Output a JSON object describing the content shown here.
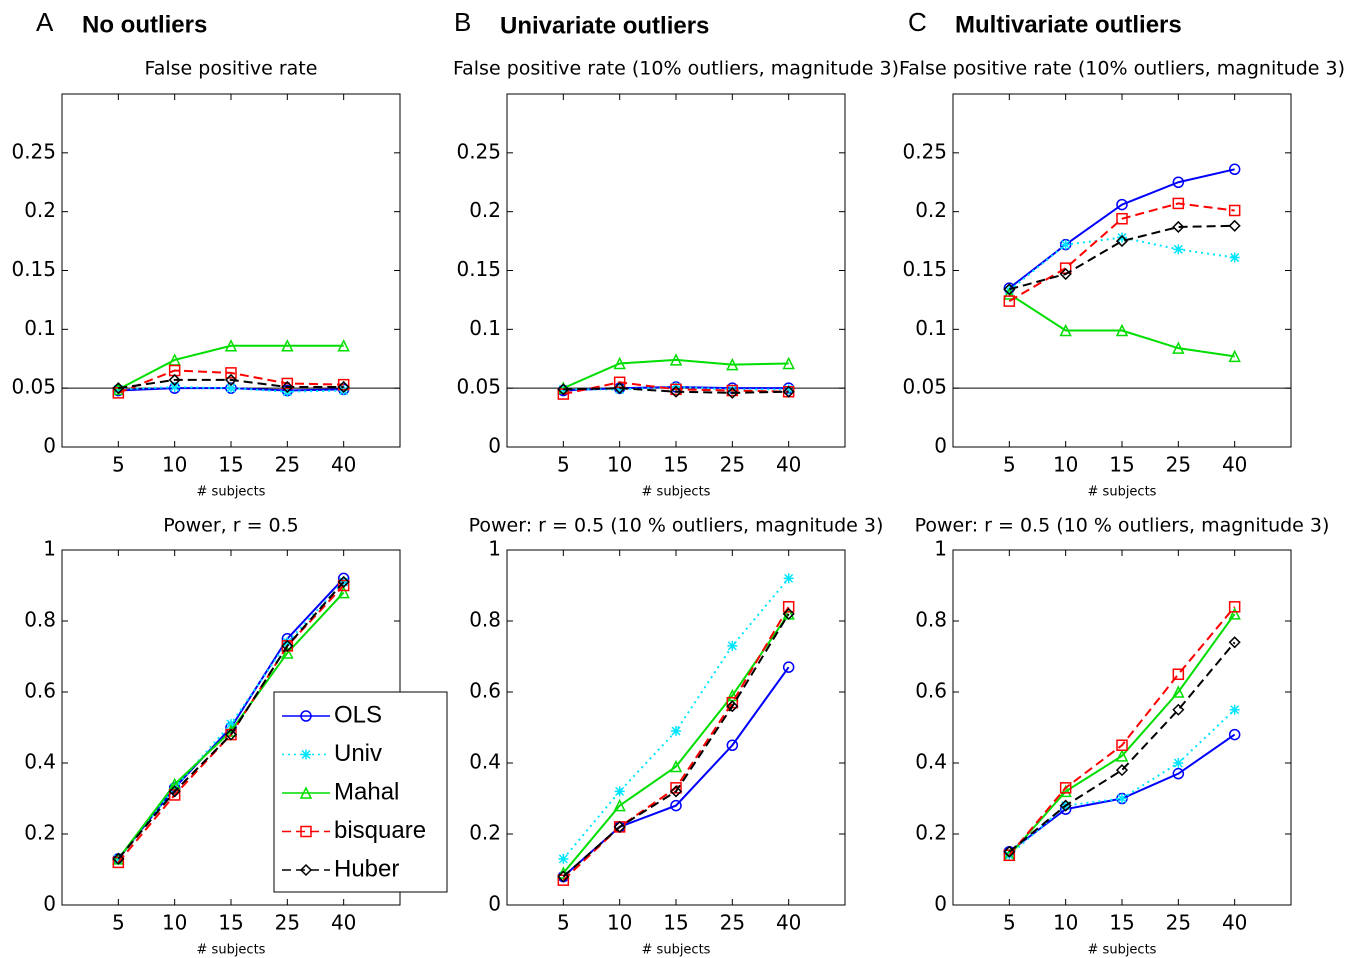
{
  "panels": [
    {
      "letter": "A",
      "title": "No outliers"
    },
    {
      "letter": "B",
      "title": "Univariate outliers"
    },
    {
      "letter": "C",
      "title": "Multivariate outliers"
    }
  ],
  "chart_data": [
    {
      "type": "line",
      "title": "False positive rate",
      "xlabel": "# subjects",
      "categories": [
        "5",
        "10",
        "15",
        "25",
        "40"
      ],
      "ylim": [
        0,
        0.3
      ],
      "yticks": [
        0,
        0.05,
        0.1,
        0.15,
        0.2,
        0.25
      ],
      "hline": 0.05,
      "series": [
        {
          "color": "#0000ff",
          "linestyle": "solid",
          "marker": "circle",
          "values": [
            0.048,
            0.05,
            0.05,
            0.048,
            0.049
          ]
        },
        {
          "color": "#00e5ff",
          "linestyle": "dotted",
          "marker": "star",
          "values": [
            0.049,
            0.051,
            0.05,
            0.047,
            0.048
          ]
        },
        {
          "color": "#00dd00",
          "linestyle": "solid",
          "marker": "triangle",
          "values": [
            0.049,
            0.074,
            0.086,
            0.086,
            0.086
          ]
        },
        {
          "color": "#ff0000",
          "linestyle": "dashed",
          "marker": "square",
          "values": [
            0.046,
            0.065,
            0.063,
            0.054,
            0.053
          ]
        },
        {
          "color": "#000000",
          "linestyle": "dashed",
          "marker": "diamond",
          "values": [
            0.05,
            0.057,
            0.057,
            0.051,
            0.051
          ]
        }
      ]
    },
    {
      "type": "line",
      "title": "False positive rate (10% outliers, magnitude 3)",
      "xlabel": "# subjects",
      "categories": [
        "5",
        "10",
        "15",
        "25",
        "40"
      ],
      "ylim": [
        0,
        0.3
      ],
      "yticks": [
        0,
        0.05,
        0.1,
        0.15,
        0.2,
        0.25
      ],
      "hline": 0.05,
      "series": [
        {
          "color": "#0000ff",
          "linestyle": "solid",
          "marker": "circle",
          "values": [
            0.048,
            0.05,
            0.051,
            0.05,
            0.05
          ]
        },
        {
          "color": "#00e5ff",
          "linestyle": "dotted",
          "marker": "star",
          "values": [
            0.049,
            0.049,
            0.051,
            0.049,
            0.049
          ]
        },
        {
          "color": "#00dd00",
          "linestyle": "solid",
          "marker": "triangle",
          "values": [
            0.05,
            0.071,
            0.074,
            0.07,
            0.071
          ]
        },
        {
          "color": "#ff0000",
          "linestyle": "dashed",
          "marker": "square",
          "values": [
            0.045,
            0.055,
            0.049,
            0.048,
            0.047
          ]
        },
        {
          "color": "#000000",
          "linestyle": "dashed",
          "marker": "diamond",
          "values": [
            0.049,
            0.05,
            0.047,
            0.046,
            0.047
          ]
        }
      ]
    },
    {
      "type": "line",
      "title": "False positive rate (10% outliers, magnitude 3)",
      "xlabel": "# subjects",
      "categories": [
        "5",
        "10",
        "15",
        "25",
        "40"
      ],
      "ylim": [
        0,
        0.3
      ],
      "yticks": [
        0,
        0.05,
        0.1,
        0.15,
        0.2,
        0.25
      ],
      "hline": 0.05,
      "series": [
        {
          "color": "#0000ff",
          "linestyle": "solid",
          "marker": "circle",
          "values": [
            0.135,
            0.172,
            0.206,
            0.225,
            0.236
          ]
        },
        {
          "color": "#00e5ff",
          "linestyle": "dotted",
          "marker": "star",
          "values": [
            0.133,
            0.172,
            0.178,
            0.168,
            0.161
          ]
        },
        {
          "color": "#00dd00",
          "linestyle": "solid",
          "marker": "triangle",
          "values": [
            0.13,
            0.099,
            0.099,
            0.084,
            0.077
          ]
        },
        {
          "color": "#ff0000",
          "linestyle": "dashed",
          "marker": "square",
          "values": [
            0.124,
            0.152,
            0.194,
            0.207,
            0.201
          ]
        },
        {
          "color": "#000000",
          "linestyle": "dashed",
          "marker": "diamond",
          "values": [
            0.134,
            0.147,
            0.175,
            0.187,
            0.188
          ]
        }
      ]
    },
    {
      "type": "line",
      "title": "Power, r = 0.5",
      "xlabel": "# subjects",
      "legend": "lower right",
      "categories": [
        "5",
        "10",
        "15",
        "25",
        "40"
      ],
      "ylim": [
        0,
        1
      ],
      "yticks": [
        0,
        0.2,
        0.4,
        0.6,
        0.8,
        1
      ],
      "series": [
        {
          "name": "OLS",
          "color": "#0000ff",
          "linestyle": "solid",
          "marker": "circle",
          "values": [
            0.13,
            0.33,
            0.5,
            0.75,
            0.92
          ]
        },
        {
          "name": "Univ",
          "color": "#00e5ff",
          "linestyle": "dotted",
          "marker": "star",
          "values": [
            0.13,
            0.33,
            0.51,
            0.74,
            0.91
          ]
        },
        {
          "name": "Mahal",
          "color": "#00dd00",
          "linestyle": "solid",
          "marker": "triangle",
          "values": [
            0.13,
            0.34,
            0.49,
            0.71,
            0.88
          ]
        },
        {
          "name": "bisquare",
          "color": "#ff0000",
          "linestyle": "dashed",
          "marker": "square",
          "values": [
            0.12,
            0.31,
            0.48,
            0.73,
            0.9
          ]
        },
        {
          "name": "Huber",
          "color": "#000000",
          "linestyle": "dashed",
          "marker": "diamond",
          "values": [
            0.13,
            0.32,
            0.48,
            0.73,
            0.91
          ]
        }
      ]
    },
    {
      "type": "line",
      "title": "Power: r = 0.5 (10 % outliers, magnitude 3)",
      "xlabel": "# subjects",
      "categories": [
        "5",
        "10",
        "15",
        "25",
        "40"
      ],
      "ylim": [
        0,
        1
      ],
      "yticks": [
        0,
        0.2,
        0.4,
        0.6,
        0.8,
        1
      ],
      "series": [
        {
          "color": "#0000ff",
          "linestyle": "solid",
          "marker": "circle",
          "values": [
            0.08,
            0.22,
            0.28,
            0.45,
            0.67
          ]
        },
        {
          "color": "#00e5ff",
          "linestyle": "dotted",
          "marker": "star",
          "values": [
            0.13,
            0.32,
            0.49,
            0.73,
            0.92
          ]
        },
        {
          "color": "#00dd00",
          "linestyle": "solid",
          "marker": "triangle",
          "values": [
            0.09,
            0.28,
            0.39,
            0.59,
            0.82
          ]
        },
        {
          "color": "#ff0000",
          "linestyle": "dashed",
          "marker": "square",
          "values": [
            0.07,
            0.22,
            0.33,
            0.57,
            0.84
          ]
        },
        {
          "color": "#000000",
          "linestyle": "dashed",
          "marker": "diamond",
          "values": [
            0.08,
            0.22,
            0.32,
            0.56,
            0.82
          ]
        }
      ]
    },
    {
      "type": "line",
      "title": "Power: r = 0.5 (10 % outliers, magnitude 3)",
      "xlabel": "# subjects",
      "categories": [
        "5",
        "10",
        "15",
        "25",
        "40"
      ],
      "ylim": [
        0,
        1
      ],
      "yticks": [
        0,
        0.2,
        0.4,
        0.6,
        0.8,
        1
      ],
      "series": [
        {
          "color": "#0000ff",
          "linestyle": "solid",
          "marker": "circle",
          "values": [
            0.15,
            0.27,
            0.3,
            0.37,
            0.48
          ]
        },
        {
          "color": "#00e5ff",
          "linestyle": "dotted",
          "marker": "star",
          "values": [
            0.14,
            0.28,
            0.3,
            0.4,
            0.55
          ]
        },
        {
          "color": "#00dd00",
          "linestyle": "solid",
          "marker": "triangle",
          "values": [
            0.14,
            0.32,
            0.42,
            0.6,
            0.82
          ]
        },
        {
          "color": "#ff0000",
          "linestyle": "dashed",
          "marker": "square",
          "values": [
            0.14,
            0.33,
            0.45,
            0.65,
            0.84
          ]
        },
        {
          "color": "#000000",
          "linestyle": "dashed",
          "marker": "diamond",
          "values": [
            0.15,
            0.28,
            0.38,
            0.55,
            0.74
          ]
        }
      ]
    }
  ]
}
